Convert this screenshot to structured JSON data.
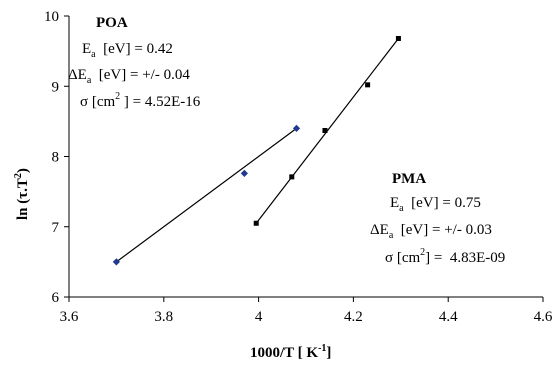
{
  "chart_data": {
    "type": "scatter",
    "xlabel": "1000/T [ K",
    "xlabel_sup": "-1",
    "xlabel_end": "]",
    "ylabel": "ln (τ.T",
    "ylabel_sup": "2",
    "ylabel_end": ")",
    "xlim": [
      3.6,
      4.6
    ],
    "ylim": [
      6,
      10
    ],
    "x_ticks": [
      "3.6",
      "3.8",
      "4",
      "4.2",
      "4.4",
      "4.6"
    ],
    "y_ticks": [
      "6",
      "7",
      "8",
      "9",
      "10"
    ],
    "grid": false,
    "series": [
      {
        "name": "POA",
        "marker": "diamond",
        "color": "#1f3a8f",
        "x": [
          3.7,
          3.97,
          4.08
        ],
        "y": [
          6.5,
          7.76,
          8.4
        ],
        "fit": {
          "x": [
            3.7,
            4.08
          ],
          "y": [
            6.5,
            8.4
          ]
        }
      },
      {
        "name": "PMA",
        "marker": "square",
        "color": "#000000",
        "x": [
          3.995,
          4.07,
          4.14,
          4.23,
          4.295
        ],
        "y": [
          7.05,
          7.71,
          8.37,
          9.02,
          9.68
        ],
        "fit": {
          "x": [
            3.995,
            4.295
          ],
          "y": [
            7.05,
            9.68
          ]
        }
      }
    ],
    "annotations": {
      "poa": {
        "title": "POA",
        "line1_sym": "E",
        "line1_sub": "a",
        "line1_rest": "  [eV] = 0.42",
        "line2_sym": "ΔE",
        "line2_sub": "a",
        "line2_rest": "  [eV] = +/- 0.04",
        "line3_pre": "σ [cm",
        "line3_sup": "2",
        "line3_rest": " ] = 4.52E-16"
      },
      "pma": {
        "title": "PMA",
        "line1_sym": "E",
        "line1_sub": "a",
        "line1_rest": "  [eV] = 0.75",
        "line2_sym": "ΔE",
        "line2_sub": "a",
        "line2_rest": "  [eV] = +/- 0.03",
        "line3_pre": "σ [cm",
        "line3_sup": "2",
        "line3_rest": "] =  4.83E-09"
      }
    }
  }
}
